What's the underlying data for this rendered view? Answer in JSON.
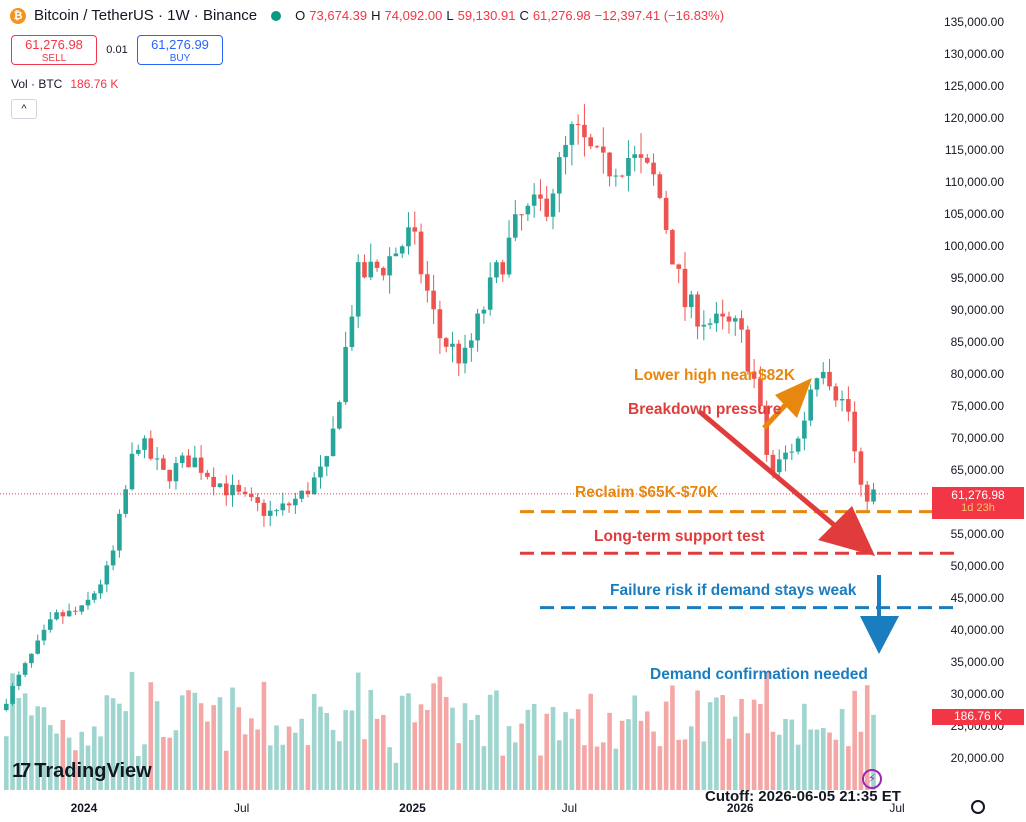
{
  "header": {
    "symbol_title": "Bitcoin / TetherUS · 1W · Binance",
    "icon": "bitcoin-icon",
    "ohlc": {
      "o_label": "O",
      "o": "73,674.39",
      "h_label": "H",
      "h": "74,092.00",
      "l_label": "L",
      "l": "59,130.91",
      "c_label": "C",
      "c": "61,276.98",
      "change": "−12,397.41 (−16.83%)"
    }
  },
  "trade": {
    "sell_price": "61,276.98",
    "sell_label": "SELL",
    "spread": "0.01",
    "buy_price": "61,276.99",
    "buy_label": "BUY"
  },
  "volume": {
    "label": "Vol · BTC",
    "value": "186.76 K",
    "tag": "186.76 K"
  },
  "price_tag": {
    "price": "61,276.98",
    "countdown": "1d 23h"
  },
  "branding": {
    "logo_text": "TradingView"
  },
  "cutoff": "Cutoff: 2026-06-05 21:35 ET",
  "colors": {
    "up": "#26a69a",
    "down": "#ef5350",
    "vol_up": "#9fd5cf",
    "vol_down": "#f5a7a6",
    "orange": "#e8870f",
    "red": "#e03c3c",
    "blue": "#1a7dc0"
  },
  "annotations": {
    "lower_high": "Lower high near $82K",
    "breakdown": "Breakdown pressure",
    "reclaim": "Reclaim $65K-$70K",
    "support": "Long-term support test",
    "failure": "Failure risk if demand stays weak",
    "demand": "Demand confirmation needed"
  },
  "chart_data": {
    "type": "candlestick",
    "title": "Bitcoin / TetherUS · 1W · Binance",
    "y_axis": {
      "ticks": [
        135000,
        130000,
        125000,
        120000,
        115000,
        110000,
        105000,
        100000,
        95000,
        90000,
        85000,
        80000,
        75000,
        70000,
        65000,
        60000,
        55000,
        50000,
        45000,
        40000,
        35000,
        30000,
        25000,
        20000
      ],
      "tick_labels": [
        "135,000.00",
        "130,000.00",
        "125,000.00",
        "120,000.00",
        "115,000.00",
        "110,000.00",
        "105,000.00",
        "100,000.00",
        "95,000.00",
        "90,000.00",
        "85,000.00",
        "80,000.00",
        "75,000.00",
        "70,000.00",
        "65,000.00",
        "60,000.00",
        "55,000.00",
        "50,000.00",
        "45,000.00",
        "40,000.00",
        "35,000.00",
        "30,000.00",
        "25,000.00",
        "20,000.00"
      ],
      "range": [
        16000,
        137000
      ]
    },
    "x_axis": {
      "tick_labels": [
        "2024",
        "Jul",
        "2025",
        "Jul",
        "2026",
        "Jul"
      ],
      "tick_dates": [
        "2024-01-01",
        "2024-07-01",
        "2025-01-01",
        "2025-07-01",
        "2026-01-01",
        "2026-07-01"
      ],
      "start_date": "2023-10-01",
      "end_date": "2026-06-05"
    },
    "close_points": [
      [
        "2023-10-01",
        27500
      ],
      [
        "2023-11-01",
        35000
      ],
      [
        "2023-12-01",
        42000
      ],
      [
        "2024-01-01",
        43000
      ],
      [
        "2024-02-01",
        50000
      ],
      [
        "2024-03-01",
        70000
      ],
      [
        "2024-04-01",
        64000
      ],
      [
        "2024-05-01",
        67000
      ],
      [
        "2024-06-01",
        63000
      ],
      [
        "2024-07-01",
        60000
      ],
      [
        "2024-08-01",
        58000
      ],
      [
        "2024-09-01",
        61000
      ],
      [
        "2024-10-01",
        66000
      ],
      [
        "2024-11-01",
        95000
      ],
      [
        "2024-12-01",
        97000
      ],
      [
        "2025-01-01",
        102000
      ],
      [
        "2025-02-01",
        86000
      ],
      [
        "2025-03-01",
        82000
      ],
      [
        "2025-04-01",
        94000
      ],
      [
        "2025-05-01",
        104000
      ],
      [
        "2025-06-01",
        107000
      ],
      [
        "2025-07-01",
        118000
      ],
      [
        "2025-08-01",
        112000
      ],
      [
        "2025-09-01",
        114000
      ],
      [
        "2025-10-01",
        110000
      ],
      [
        "2025-11-01",
        91000
      ],
      [
        "2025-12-01",
        88000
      ],
      [
        "2026-01-01",
        87000
      ],
      [
        "2026-01-20",
        78000
      ],
      [
        "2026-02-05",
        64000
      ],
      [
        "2026-02-20",
        67000
      ],
      [
        "2026-03-10",
        70000
      ],
      [
        "2026-03-25",
        80000
      ],
      [
        "2026-04-05",
        82000
      ],
      [
        "2026-04-20",
        77000
      ],
      [
        "2026-05-05",
        73700
      ],
      [
        "2026-05-15",
        61276.98
      ]
    ],
    "levels": [
      {
        "name": "Reclaim $65K-$70K",
        "value": 58500
      },
      {
        "name": "Long-term support test",
        "value": 52000
      },
      {
        "name": "Failure risk if demand stays weak",
        "value": 43500
      }
    ],
    "last_price": 61276.98,
    "volume_last": "186.76 K"
  }
}
